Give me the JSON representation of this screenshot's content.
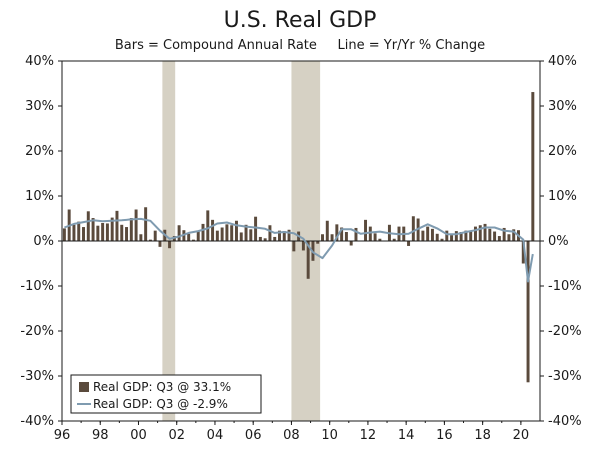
{
  "chart_data": {
    "type": "bar",
    "title": "U.S. Real GDP",
    "subtitle": "Bars = Compound Annual Rate     Line = Yr/Yr % Change",
    "xlabel": "",
    "ylabel": "",
    "ylim": [
      -40,
      40
    ],
    "y_ticks": [
      40,
      30,
      20,
      10,
      0,
      -10,
      -20,
      -30,
      -40
    ],
    "y_tick_labels": [
      "40%",
      "30%",
      "20%",
      "10%",
      "0%",
      "-10%",
      "-20%",
      "-30%",
      "-40%"
    ],
    "x_range": [
      1996,
      2021
    ],
    "x_ticks": [
      1996,
      1998,
      2000,
      2002,
      2004,
      2006,
      2008,
      2010,
      2012,
      2014,
      2016,
      2018,
      2020
    ],
    "x_tick_labels": [
      "96",
      "98",
      "00",
      "02",
      "04",
      "06",
      "08",
      "10",
      "12",
      "14",
      "16",
      "18",
      "20"
    ],
    "recessions": [
      {
        "start": 2001.25,
        "end": 2001.92
      },
      {
        "start": 2008.0,
        "end": 2009.5
      }
    ],
    "bar_color": "#5a4a3c",
    "line_color": "#7f9bb0",
    "recession_color": "#d6d1c4",
    "series": [
      {
        "name": "Real GDP: Q3 @ 33.1%",
        "kind": "bar",
        "x": [
          1996.0,
          1996.25,
          1996.5,
          1996.75,
          1997.0,
          1997.25,
          1997.5,
          1997.75,
          1998.0,
          1998.25,
          1998.5,
          1998.75,
          1999.0,
          1999.25,
          1999.5,
          1999.75,
          2000.0,
          2000.25,
          2000.5,
          2000.75,
          2001.0,
          2001.25,
          2001.5,
          2001.75,
          2002.0,
          2002.25,
          2002.5,
          2002.75,
          2003.0,
          2003.25,
          2003.5,
          2003.75,
          2004.0,
          2004.25,
          2004.5,
          2004.75,
          2005.0,
          2005.25,
          2005.5,
          2005.75,
          2006.0,
          2006.25,
          2006.5,
          2006.75,
          2007.0,
          2007.25,
          2007.5,
          2007.75,
          2008.0,
          2008.25,
          2008.5,
          2008.75,
          2009.0,
          2009.25,
          2009.5,
          2009.75,
          2010.0,
          2010.25,
          2010.5,
          2010.75,
          2011.0,
          2011.25,
          2011.5,
          2011.75,
          2012.0,
          2012.25,
          2012.5,
          2012.75,
          2013.0,
          2013.25,
          2013.5,
          2013.75,
          2014.0,
          2014.25,
          2014.5,
          2014.75,
          2015.0,
          2015.25,
          2015.5,
          2015.75,
          2016.0,
          2016.25,
          2016.5,
          2016.75,
          2017.0,
          2017.25,
          2017.5,
          2017.75,
          2018.0,
          2018.25,
          2018.5,
          2018.75,
          2019.0,
          2019.25,
          2019.5,
          2019.75,
          2020.0,
          2020.25,
          2020.5
        ],
        "values": [
          2.8,
          7.0,
          3.6,
          4.3,
          3.1,
          6.6,
          5.1,
          3.4,
          4.0,
          3.9,
          5.2,
          6.7,
          3.6,
          3.1,
          5.1,
          7.0,
          1.5,
          7.5,
          0.3,
          2.3,
          -1.3,
          2.5,
          -1.6,
          1.1,
          3.5,
          2.4,
          1.6,
          0.3,
          2.1,
          3.8,
          6.8,
          4.7,
          2.3,
          3.0,
          3.7,
          3.5,
          4.5,
          1.9,
          3.6,
          2.6,
          5.4,
          0.9,
          0.6,
          3.5,
          0.9,
          2.3,
          2.2,
          2.5,
          -2.3,
          2.1,
          -2.1,
          -8.4,
          -4.4,
          -0.6,
          1.5,
          4.5,
          1.5,
          3.7,
          3.0,
          2.0,
          -1.0,
          2.9,
          -0.1,
          4.7,
          3.2,
          1.7,
          0.5,
          0.1,
          3.6,
          0.5,
          3.2,
          3.2,
          -1.1,
          5.5,
          5.0,
          2.3,
          3.2,
          2.7,
          1.6,
          0.5,
          2.3,
          1.3,
          2.2,
          2.0,
          2.3,
          2.2,
          3.2,
          3.5,
          3.8,
          2.7,
          2.1,
          1.1,
          2.9,
          1.5,
          2.6,
          2.4,
          -5.0,
          -31.4,
          33.1
        ]
      },
      {
        "name": "Real GDP: Q3 @ -2.9%",
        "kind": "line",
        "x": [
          1996.0,
          1996.5,
          1997.0,
          1997.5,
          1998.0,
          1998.5,
          1999.0,
          1999.5,
          2000.0,
          2000.5,
          2001.0,
          2001.5,
          2002.0,
          2002.5,
          2003.0,
          2003.5,
          2004.0,
          2004.5,
          2005.0,
          2005.5,
          2006.0,
          2006.5,
          2007.0,
          2007.5,
          2008.0,
          2008.5,
          2009.0,
          2009.5,
          2010.0,
          2010.5,
          2011.0,
          2011.5,
          2012.0,
          2012.5,
          2013.0,
          2013.5,
          2014.0,
          2014.5,
          2015.0,
          2015.5,
          2016.0,
          2016.5,
          2017.0,
          2017.5,
          2018.0,
          2018.5,
          2019.0,
          2019.5,
          2020.0,
          2020.25,
          2020.5
        ],
        "values": [
          3.0,
          3.8,
          4.2,
          4.6,
          4.4,
          4.5,
          4.6,
          4.8,
          4.9,
          4.5,
          2.3,
          0.5,
          1.0,
          1.8,
          2.2,
          2.8,
          3.9,
          4.1,
          3.5,
          3.2,
          3.0,
          2.7,
          1.8,
          2.0,
          1.7,
          0.5,
          -2.5,
          -3.8,
          -1.0,
          2.6,
          2.6,
          1.6,
          1.9,
          2.1,
          1.7,
          1.5,
          1.6,
          2.7,
          3.7,
          2.8,
          1.5,
          1.5,
          2.0,
          2.4,
          3.0,
          3.0,
          2.3,
          2.1,
          0.3,
          -9.0,
          -2.9
        ]
      }
    ],
    "legend": {
      "placement": "bottom-left"
    }
  }
}
